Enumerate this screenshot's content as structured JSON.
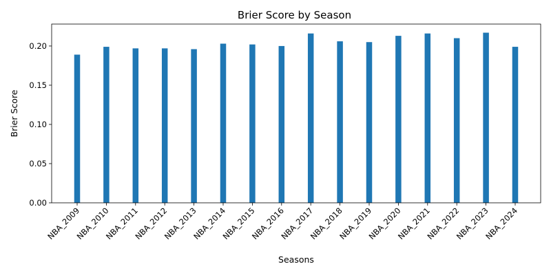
{
  "chart_data": {
    "type": "bar",
    "title": "Brier Score by Season",
    "xlabel": "Seasons",
    "ylabel": "Brier Score",
    "categories": [
      "NBA_2009",
      "NBA_2010",
      "NBA_2011",
      "NBA_2012",
      "NBA_2013",
      "NBA_2014",
      "NBA_2015",
      "NBA_2016",
      "NBA_2017",
      "NBA_2018",
      "NBA_2019",
      "NBA_2020",
      "NBA_2021",
      "NBA_2022",
      "NBA_2023",
      "NBA_2024"
    ],
    "values": [
      0.189,
      0.199,
      0.197,
      0.197,
      0.196,
      0.203,
      0.202,
      0.2,
      0.216,
      0.206,
      0.205,
      0.213,
      0.216,
      0.21,
      0.217,
      0.199
    ],
    "ylim": [
      0,
      0.228
    ],
    "yticks": [
      "0.00",
      "0.05",
      "0.10",
      "0.15",
      "0.20"
    ],
    "grid": false,
    "colors": {
      "bar": "#1f77b4",
      "axis": "#000000",
      "background": "#ffffff"
    }
  }
}
